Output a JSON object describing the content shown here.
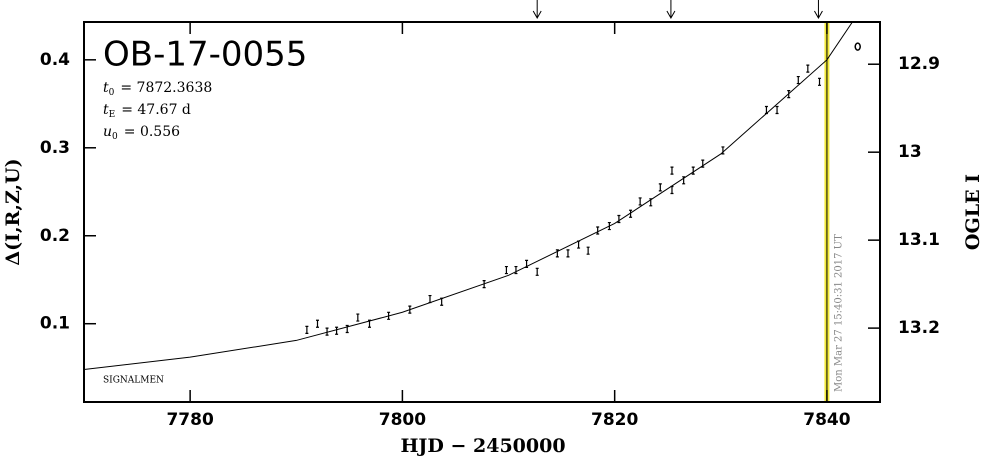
{
  "chart_data": {
    "type": "scatter",
    "title": "OB-17-0055",
    "parameters": [
      {
        "symbol": "t",
        "sub": "0",
        "text": "= 7872.3638"
      },
      {
        "symbol": "t",
        "sub": "E",
        "text": "= 47.67 d"
      },
      {
        "symbol": "u",
        "sub": "0",
        "text": "= 0.556"
      }
    ],
    "annotation": "SIGNALMEN",
    "xlabel": "HJD − 2450000",
    "ylabel": "Δ(I,R,Z,U)",
    "y2label": "OGLE I",
    "xlim": [
      7770,
      7845
    ],
    "xticks": [
      7780,
      7800,
      7820,
      7840
    ],
    "ylim": [
      0.011,
      0.443
    ],
    "yticks": [
      0.1,
      0.2,
      0.3,
      0.4
    ],
    "y2lim": [
      13.284,
      12.852
    ],
    "y2ticks": [
      13.2,
      13.1,
      13,
      12.9
    ],
    "series": [
      {
        "type": "scatter",
        "marker": "errbar",
        "color": "#000000",
        "x": [
          7791.0,
          7792.0,
          7792.9,
          7793.8,
          7794.8,
          7795.8,
          7796.9,
          7798.7,
          7800.7,
          7802.6,
          7803.7,
          7807.7,
          7809.8,
          7810.7,
          7811.7,
          7812.7,
          7814.6,
          7815.6,
          7816.6,
          7817.5,
          7818.4,
          7819.5,
          7820.4,
          7821.5,
          7822.4,
          7823.4,
          7824.3,
          7825.4,
          7825.4,
          7826.5,
          7827.4,
          7828.3,
          7830.2,
          7834.3,
          7835.3,
          7836.4,
          7837.3,
          7838.2,
          7839.3
        ],
        "values": [
          0.093,
          0.1,
          0.091,
          0.092,
          0.094,
          0.107,
          0.1,
          0.109,
          0.116,
          0.128,
          0.125,
          0.145,
          0.161,
          0.161,
          0.168,
          0.159,
          0.18,
          0.18,
          0.19,
          0.183,
          0.206,
          0.211,
          0.219,
          0.225,
          0.239,
          0.238,
          0.255,
          0.274,
          0.252,
          0.263,
          0.274,
          0.282,
          0.297,
          0.343,
          0.343,
          0.361,
          0.377,
          0.39,
          0.375
        ]
      },
      {
        "type": "scatter",
        "marker": "open-circle",
        "color": "#000000",
        "x": [
          7842.9
        ],
        "values": [
          0.415
        ]
      },
      {
        "type": "line",
        "color": "#000000",
        "x": [
          7770,
          7780,
          7790,
          7800,
          7810,
          7820,
          7830,
          7840,
          7842.4
        ],
        "values": [
          0.048,
          0.062,
          0.081,
          0.113,
          0.155,
          0.214,
          0.293,
          0.4,
          0.443
        ]
      }
    ],
    "now_line": {
      "x": 7840,
      "color": "#f2ea3c",
      "label": "Mon Mar 27 15:40:31 2017 UT"
    },
    "arrows": [
      7812.7,
      7825.3,
      7839.2
    ]
  }
}
